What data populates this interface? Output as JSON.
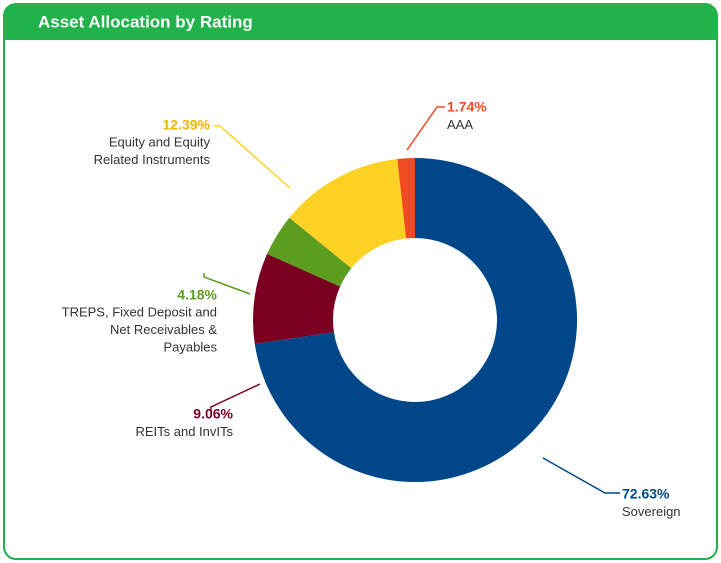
{
  "chart_data": {
    "type": "pie",
    "donut": true,
    "title": "Asset Allocation by Rating",
    "categories": [
      "Sovereign",
      "REITs and InvITs",
      "TREPS, Fixed Deposit and\nNet Receivables &\nPayables",
      "Equity and Equity\nRelated Instruments",
      "AAA"
    ],
    "values": [
      72.63,
      9.06,
      4.18,
      12.39,
      1.74
    ],
    "value_labels": [
      "72.63%",
      "9.06%",
      "4.18%",
      "12.39%",
      "1.74%"
    ],
    "colors": [
      "#00478a",
      "#7a0021",
      "#5a9d1f",
      "#fdd225",
      "#f04b22"
    ]
  }
}
